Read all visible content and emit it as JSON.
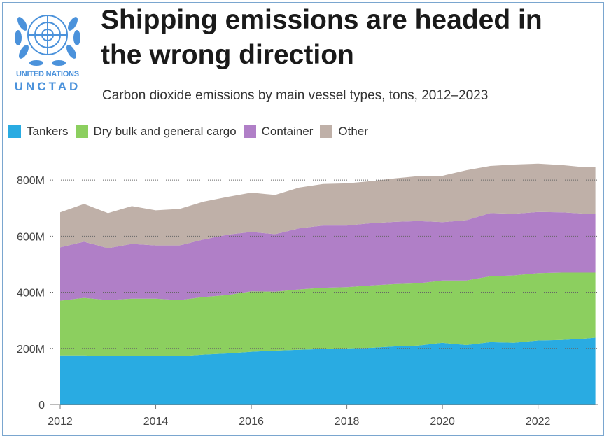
{
  "header": {
    "title_line1": "Shipping emissions are headed in",
    "title_line2": "the wrong direction",
    "subtitle": "Carbon dioxide emissions by main vessel types, tons, 2012–2023"
  },
  "logo": {
    "line1": "UNITED NATIONS",
    "line2": "UNCTAD",
    "icon": "un-emblem-icon",
    "color": "#4b92db"
  },
  "chart_data": {
    "type": "area",
    "stacked": true,
    "title": "Shipping emissions are headed in the wrong direction",
    "subtitle": "Carbon dioxide emissions by main vessel types, tons, 2012–2023",
    "xlabel": "",
    "ylabel": "",
    "xlim": [
      2012,
      2023.25
    ],
    "ylim": [
      0,
      880000000
    ],
    "x_ticks": [
      "2012",
      "2014",
      "2016",
      "2018",
      "2020",
      "2022"
    ],
    "y_ticks": [
      "0",
      "200M",
      "400M",
      "600M",
      "800M"
    ],
    "legend_position": "top-left",
    "x": [
      2012.0,
      2012.5,
      2013.0,
      2013.5,
      2014.0,
      2014.5,
      2015.0,
      2015.5,
      2016.0,
      2016.5,
      2017.0,
      2017.5,
      2018.0,
      2018.5,
      2019.0,
      2019.5,
      2020.0,
      2020.5,
      2021.0,
      2021.5,
      2022.0,
      2022.5,
      2023.0,
      2023.2
    ],
    "series": [
      {
        "name": "Tankers",
        "color": "#29abe2",
        "values": [
          175,
          175,
          172,
          172,
          172,
          172,
          178,
          182,
          188,
          192,
          195,
          198,
          200,
          202,
          207,
          210,
          220,
          212,
          222,
          220,
          228,
          230,
          235,
          238
        ]
      },
      {
        "name": "Dry bulk and general cargo",
        "color": "#8ccf5f",
        "values": [
          195,
          205,
          200,
          205,
          205,
          200,
          205,
          208,
          215,
          210,
          215,
          218,
          218,
          222,
          222,
          222,
          222,
          230,
          235,
          240,
          240,
          240,
          235,
          232
        ]
      },
      {
        "name": "Container",
        "color": "#b07fc7",
        "values": [
          190,
          200,
          185,
          195,
          190,
          195,
          205,
          215,
          212,
          205,
          218,
          222,
          220,
          222,
          222,
          222,
          208,
          215,
          225,
          220,
          218,
          215,
          210,
          208
        ]
      },
      {
        "name": "Other",
        "color": "#bfb0a8",
        "values": [
          125,
          135,
          125,
          135,
          125,
          130,
          135,
          135,
          140,
          140,
          145,
          148,
          150,
          150,
          155,
          160,
          165,
          178,
          168,
          175,
          172,
          168,
          165,
          168
        ]
      }
    ],
    "units": "M tons"
  }
}
